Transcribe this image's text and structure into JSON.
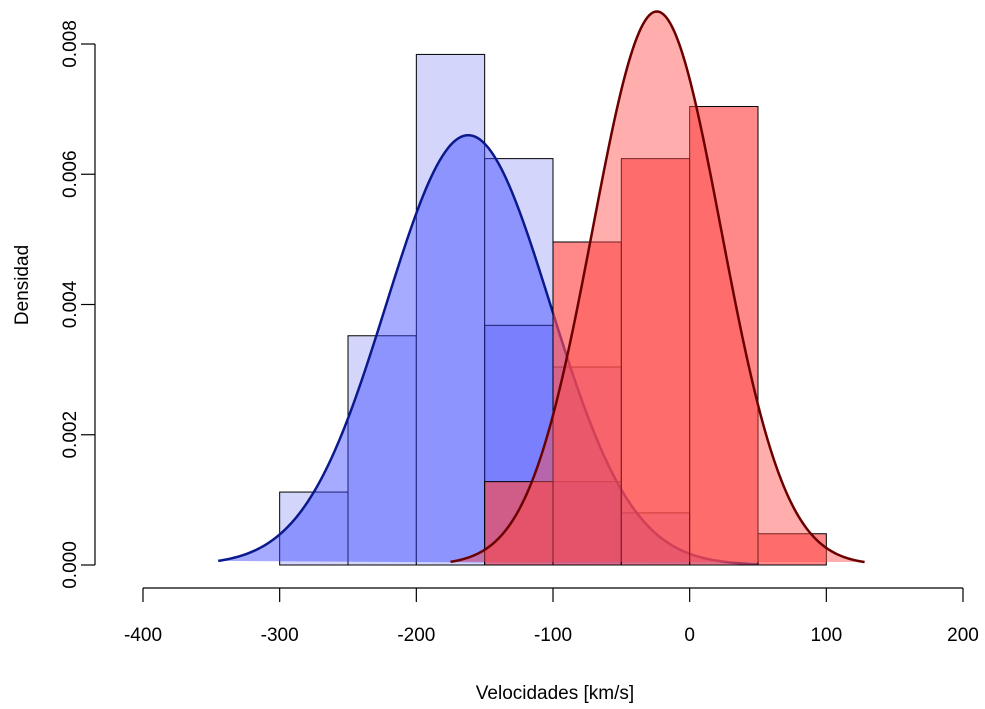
{
  "chart_data": {
    "type": "histogram",
    "xlabel": "Velocidades [km/s]",
    "ylabel": "Densidad",
    "xlim": [
      -400,
      200
    ],
    "ylim": [
      0,
      0.008
    ],
    "x_ticks": [
      -400,
      -300,
      -200,
      -100,
      0,
      100,
      200
    ],
    "x_tick_labels": [
      "-400",
      "-300",
      "-200",
      "-100",
      "0",
      "100",
      "200"
    ],
    "y_ticks": [
      0,
      0.002,
      0.004,
      0.006,
      0.008
    ],
    "y_tick_labels": [
      "0.000",
      "0.002",
      "0.004",
      "0.006",
      "0.008"
    ],
    "grid": false,
    "bin_width": 50,
    "colors": {
      "blue_fill": "#3a44ff",
      "blue_light_fill": "#d3d5fb",
      "blue_curve": "#0a1a8c",
      "red_fill": "#ff4a4a",
      "red_curve": "#6b0000",
      "bar_edge": "#000000"
    },
    "series": [
      {
        "bins_left": [
          -300,
          -250,
          -200,
          -150,
          -100,
          -50,
          0,
          50
        ],
        "densities_light": [
          0.00112,
          0.00352,
          0.00784,
          0.00624,
          0.00304,
          0.0008,
          0.0,
          0.0
        ],
        "densities_dark": [
          0.0,
          0.0,
          0.0,
          0.00368,
          0.00128,
          0.0,
          0.0,
          0.0
        ],
        "curve": {
          "mean": -162,
          "sd": 60,
          "peak": 0.0066,
          "from": -345,
          "to": 50
        }
      },
      {
        "bins_left": [
          -150,
          -100,
          -50,
          0,
          50
        ],
        "densities": [
          0.00128,
          0.00496,
          0.00624,
          0.00704,
          0.00048
        ],
        "curve": {
          "mean": -24,
          "sd": 47,
          "peak": 0.0085,
          "from": -175,
          "to": 128
        }
      }
    ]
  }
}
